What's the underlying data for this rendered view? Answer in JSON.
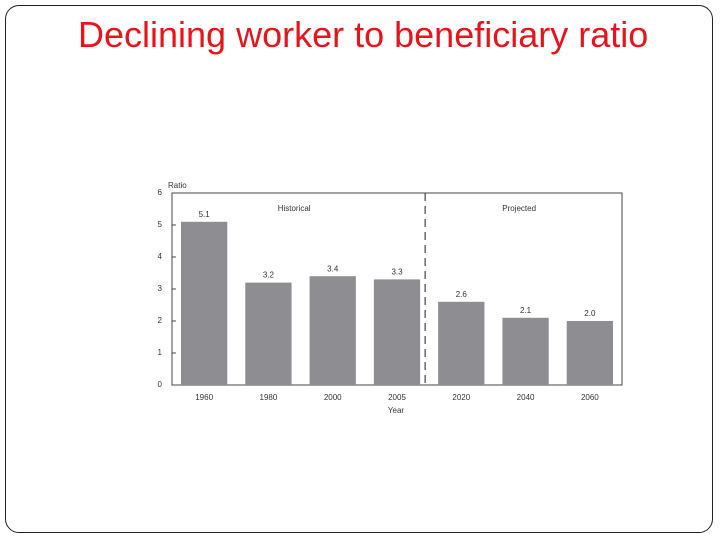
{
  "title": "Declining worker to beneficiary ratio",
  "chart_data": {
    "type": "bar",
    "y_label": "Ratio",
    "x_label": "Year",
    "annotations": [
      "Historical",
      "Projected"
    ],
    "categories": [
      "1960",
      "1980",
      "2000",
      "2005",
      "2020",
      "2040",
      "2060"
    ],
    "values": [
      5.1,
      3.2,
      3.4,
      3.3,
      2.6,
      2.1,
      2.0
    ],
    "value_labels": [
      "5.1",
      "3.2",
      "3.4",
      "3.3",
      "2.6",
      "2.1",
      "2.0"
    ],
    "color": "#8e8e92",
    "ylim": [
      0,
      6
    ],
    "yticks": [
      0,
      1,
      2,
      3,
      4,
      5,
      6
    ]
  }
}
